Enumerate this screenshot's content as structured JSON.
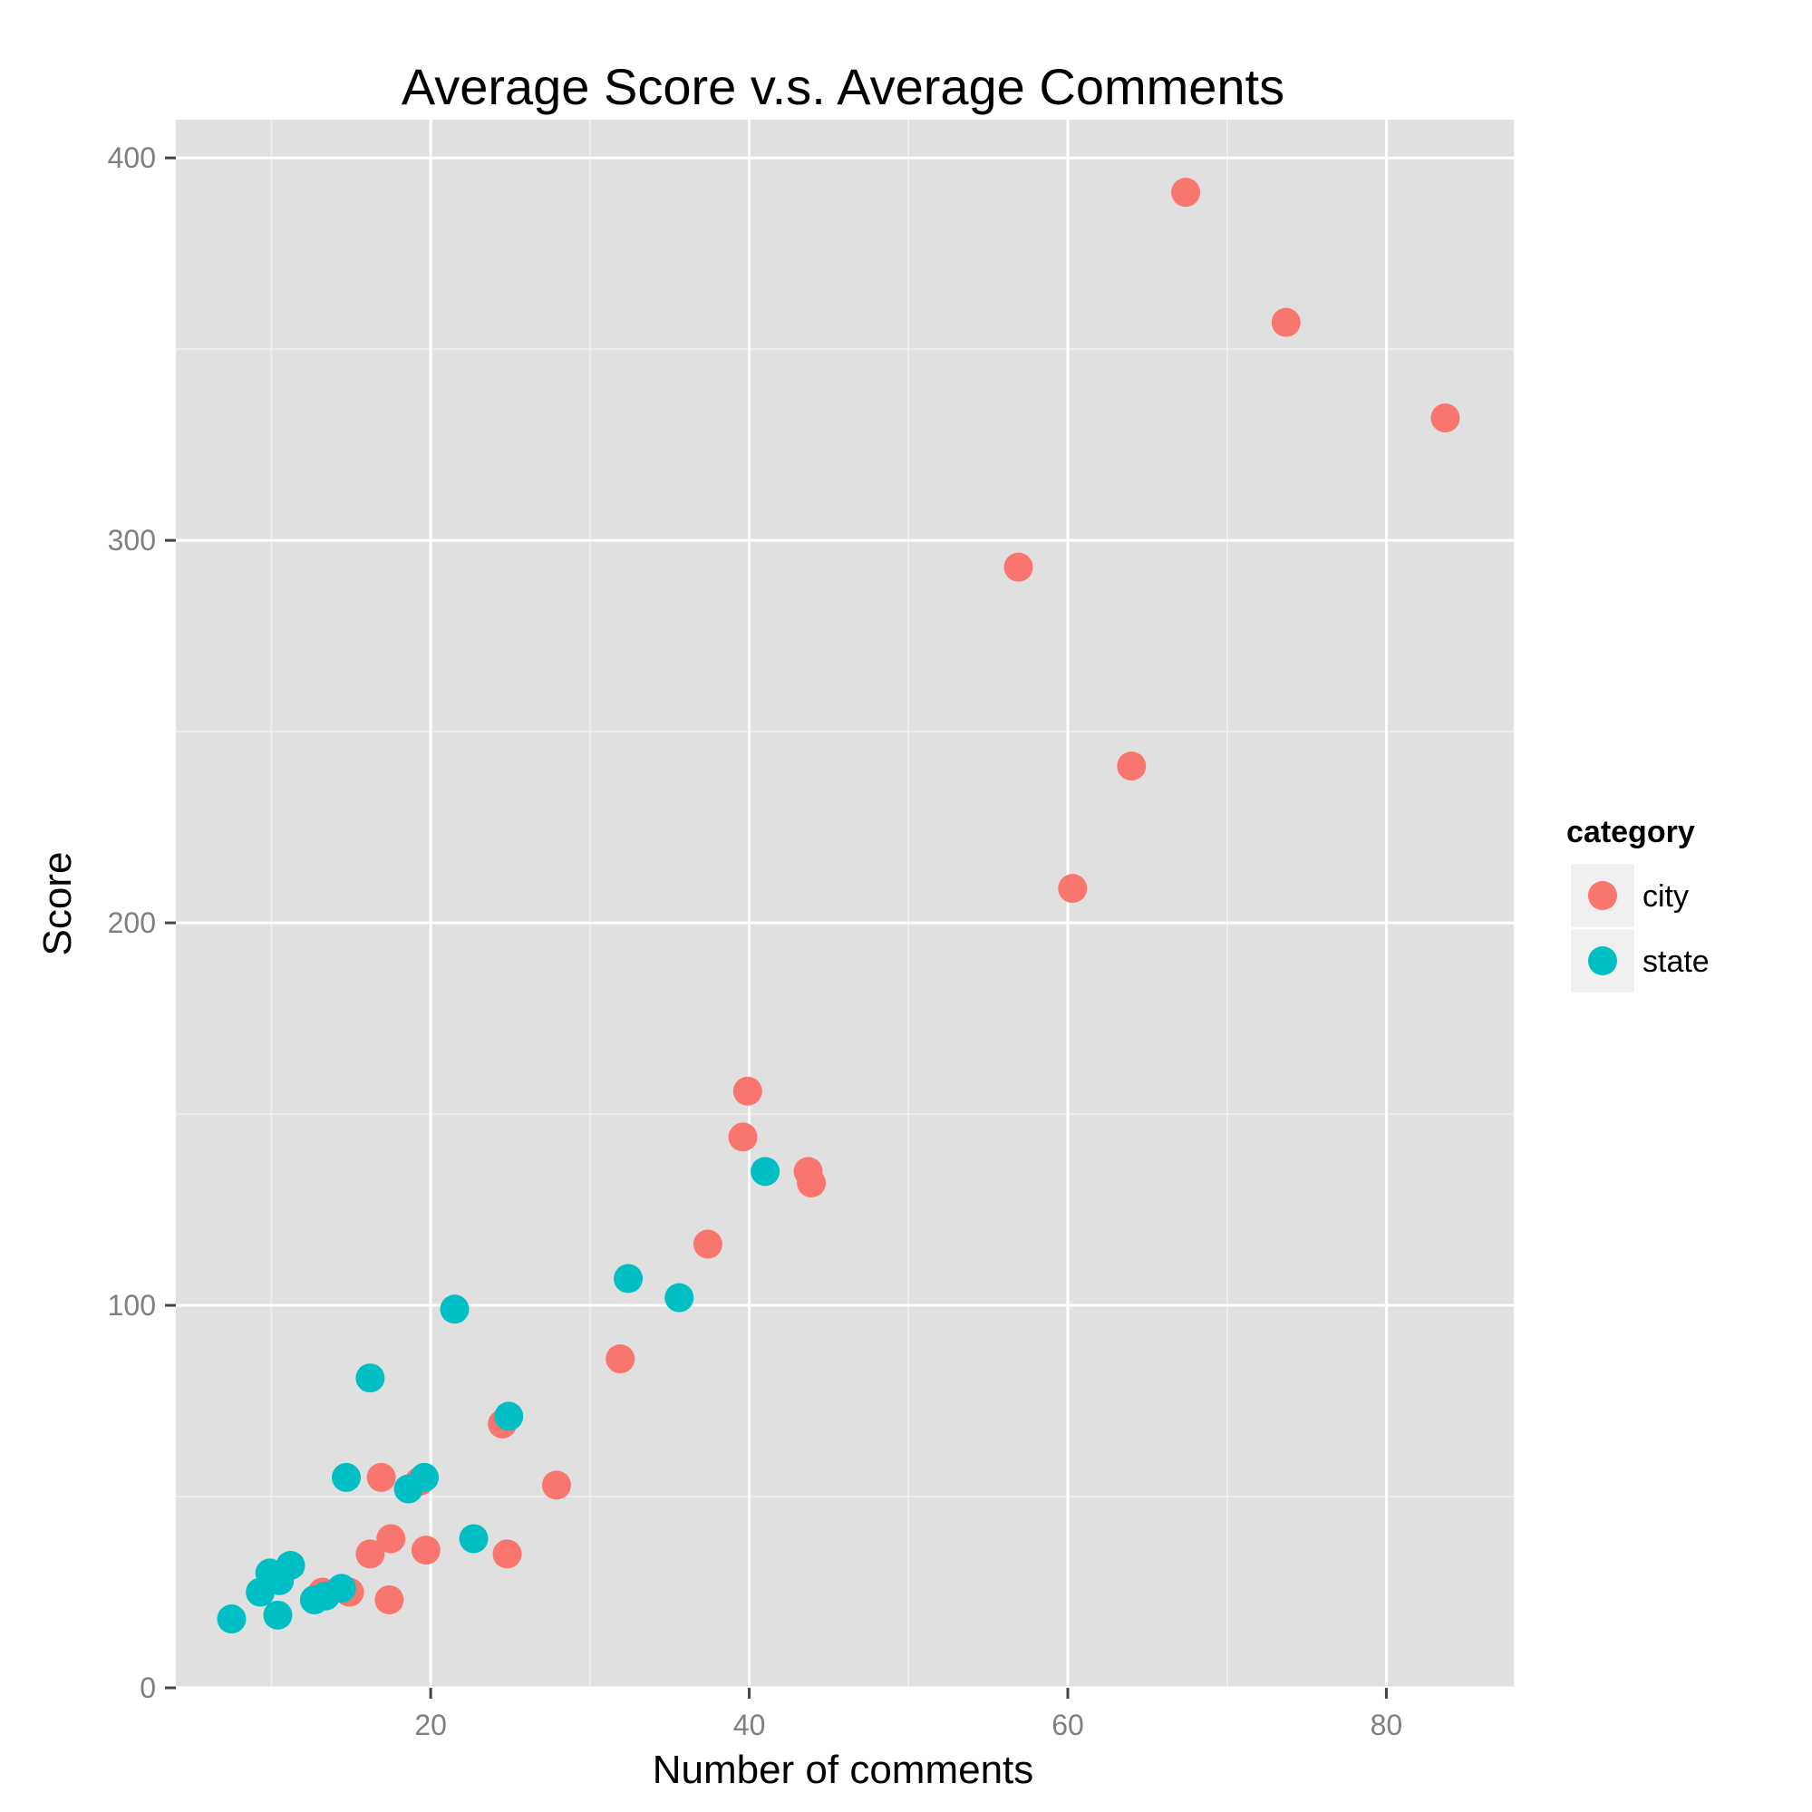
{
  "chart_data": {
    "type": "scatter",
    "title": "Average Score v.s. Average Comments",
    "xlabel": "Number of comments",
    "ylabel": "Score",
    "xlim": [
      4,
      88
    ],
    "ylim": [
      0,
      410
    ],
    "x_ticks": [
      20,
      40,
      60,
      80
    ],
    "y_ticks": [
      0,
      100,
      200,
      300,
      400
    ],
    "x_tick_labels": [
      "20",
      "40",
      "60",
      "80"
    ],
    "y_tick_labels": [
      "0",
      "100",
      "200",
      "300",
      "400"
    ],
    "grid": true,
    "panel_background": "#e0e0e0",
    "legend": {
      "title": "category",
      "position": "right"
    },
    "series": [
      {
        "name": "city",
        "color": "#f8766d",
        "points": [
          [
            67.4,
            391
          ],
          [
            73.7,
            357
          ],
          [
            83.7,
            332
          ],
          [
            56.9,
            293
          ],
          [
            64.0,
            241
          ],
          [
            60.3,
            209
          ],
          [
            39.9,
            156
          ],
          [
            39.6,
            144
          ],
          [
            43.7,
            135
          ],
          [
            43.9,
            132
          ],
          [
            37.4,
            116
          ],
          [
            31.9,
            86
          ],
          [
            24.5,
            69
          ],
          [
            27.9,
            53
          ],
          [
            16.9,
            55
          ],
          [
            19.3,
            54
          ],
          [
            17.5,
            39
          ],
          [
            16.2,
            35
          ],
          [
            19.7,
            36
          ],
          [
            24.8,
            35
          ],
          [
            13.2,
            25
          ],
          [
            14.9,
            25
          ],
          [
            17.4,
            23
          ]
        ]
      },
      {
        "name": "state",
        "color": "#00bfc4",
        "points": [
          [
            41.0,
            135
          ],
          [
            32.4,
            107
          ],
          [
            35.6,
            102
          ],
          [
            21.5,
            99
          ],
          [
            16.2,
            81
          ],
          [
            24.9,
            71
          ],
          [
            14.7,
            55
          ],
          [
            19.6,
            55
          ],
          [
            18.6,
            52
          ],
          [
            22.7,
            39
          ],
          [
            11.2,
            32
          ],
          [
            9.9,
            30
          ],
          [
            10.5,
            28
          ],
          [
            9.3,
            25
          ],
          [
            14.4,
            26
          ],
          [
            13.4,
            24
          ],
          [
            12.7,
            23
          ],
          [
            7.5,
            18
          ],
          [
            10.4,
            19
          ]
        ]
      }
    ]
  }
}
